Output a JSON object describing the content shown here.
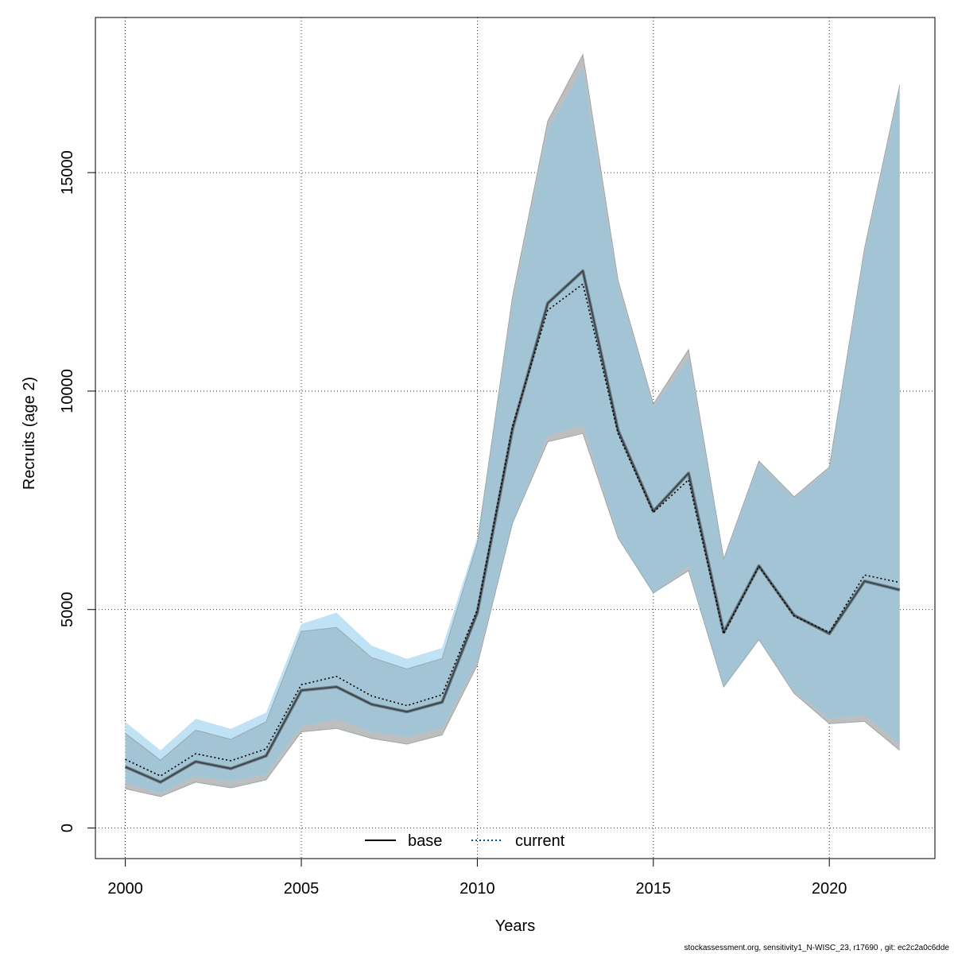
{
  "chart_data": {
    "type": "line",
    "xlabel": "Years",
    "ylabel": "Recruits (age 2)",
    "xlim": [
      1999.15,
      2023.0
    ],
    "ylim": [
      -700,
      18550
    ],
    "x_ticks": [
      2000,
      2005,
      2010,
      2015,
      2020
    ],
    "y_ticks": [
      0,
      5000,
      10000,
      15000
    ],
    "grid": true,
    "legend_position": "bottom",
    "x": [
      2000,
      2001,
      2002,
      2003,
      2004,
      2005,
      2006,
      2007,
      2008,
      2009,
      2010,
      2011,
      2012,
      2013,
      2014,
      2015,
      2016,
      2017,
      2018,
      2019,
      2020,
      2021,
      2022
    ],
    "series": [
      {
        "name": "base",
        "line_style": "solid",
        "line_color": "#000000",
        "band_color": "#bebebe",
        "values": [
          1400,
          1050,
          1520,
          1360,
          1650,
          3150,
          3230,
          2830,
          2660,
          2880,
          4930,
          9130,
          12010,
          12750,
          9100,
          7250,
          8120,
          4480,
          6000,
          4870,
          4450,
          5650,
          5450
        ],
        "lower": [
          900,
          720,
          1050,
          920,
          1100,
          2200,
          2280,
          2050,
          1920,
          2130,
          3730,
          6980,
          8840,
          9030,
          6640,
          5380,
          5890,
          3230,
          4310,
          3080,
          2390,
          2440,
          1780
        ],
        "upper": [
          2170,
          1550,
          2240,
          2030,
          2430,
          4500,
          4590,
          3900,
          3640,
          3880,
          6520,
          12160,
          16180,
          17700,
          12530,
          9700,
          10950,
          6160,
          8400,
          7580,
          8260,
          13260,
          17000
        ]
      },
      {
        "name": "current",
        "line_style": "dotted",
        "line_color": "#00508c",
        "band_color": "#bfe3f5",
        "values": [
          1570,
          1190,
          1700,
          1540,
          1810,
          3280,
          3470,
          3020,
          2800,
          3050,
          5000,
          9200,
          11850,
          12450,
          9020,
          7220,
          7970,
          4440,
          5990,
          4850,
          4480,
          5790,
          5620
        ],
        "lower": [
          1020,
          800,
          1190,
          1060,
          1230,
          2330,
          2480,
          2200,
          2080,
          2280,
          3830,
          7000,
          8980,
          9220,
          6680,
          5360,
          5990,
          3210,
          4320,
          3140,
          2500,
          2580,
          1920
        ],
        "upper": [
          2430,
          1780,
          2500,
          2270,
          2640,
          4670,
          4930,
          4170,
          3870,
          4120,
          6650,
          11980,
          16000,
          17400,
          12420,
          9650,
          10750,
          6120,
          8350,
          7540,
          8220,
          13150,
          16900
        ]
      }
    ]
  },
  "footer": {
    "note": "stockassessment.org, sensitivity1_N-WISC_23, r17690 , git: ec2c2a0c6dde"
  },
  "colors": {
    "overlap": "#a3c4d4",
    "grid": "#000000",
    "frame": "#000000"
  }
}
